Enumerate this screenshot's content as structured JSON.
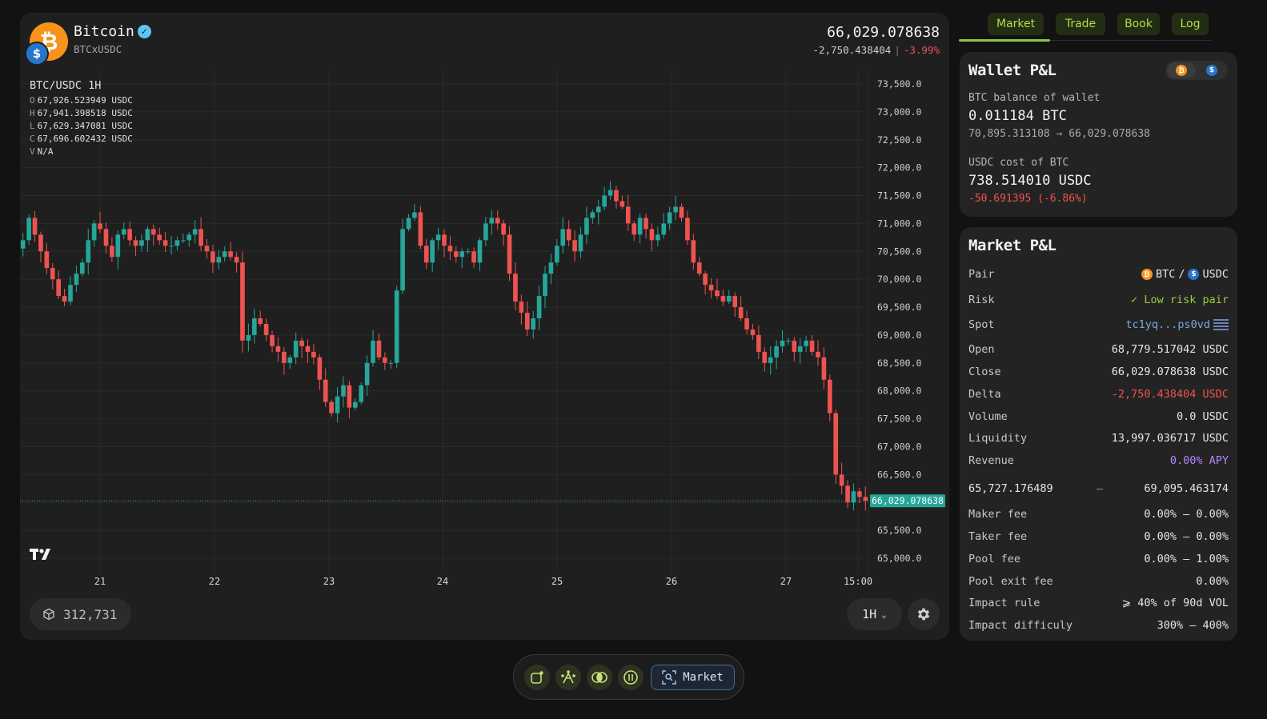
{
  "header": {
    "coin_name": "Bitcoin",
    "coin_symbol_glyph": "₿",
    "usdc_glyph": "$",
    "pair": "BTCxUSDC",
    "price": "66,029.078638",
    "change_abs": "-2,750.438404",
    "change_sep": "|",
    "change_pct": "-3.99%"
  },
  "ohlc": {
    "title": "BTC/USDC 1H",
    "o_label": "O",
    "o": "67,926.523949 USDC",
    "h_label": "H",
    "h": "67,941.398518 USDC",
    "l_label": "L",
    "l": "67,629.347081 USDC",
    "c_label": "C",
    "c": "67,696.602432 USDC",
    "v_label": "V",
    "v": "N/A"
  },
  "chart_data": {
    "type": "candlestick",
    "y_ticks": [
      "73,500.0",
      "73,000.0",
      "72,500.0",
      "72,000.0",
      "71,500.0",
      "71,000.0",
      "70,500.0",
      "70,000.0",
      "69,500.0",
      "69,000.0",
      "68,500.0",
      "68,000.0",
      "67,500.0",
      "67,000.0",
      "66,500.0",
      "66,000.0",
      "65,500.0",
      "65,000.0"
    ],
    "x_ticks": [
      "21",
      "22",
      "23",
      "24",
      "25",
      "26",
      "27",
      "15:00"
    ],
    "ylim": [
      65000,
      73500
    ],
    "current_price_label": "66,029.078638",
    "current_price": 66029.08,
    "up_color": "#26a69a",
    "down_color": "#ef5350",
    "closes": [
      70700,
      71100,
      70800,
      70500,
      70200,
      70000,
      69700,
      69600,
      69900,
      70100,
      70300,
      70700,
      71000,
      70900,
      70600,
      70400,
      70800,
      70900,
      70700,
      70600,
      70700,
      70900,
      70800,
      70700,
      70600,
      70600,
      70700,
      70700,
      70800,
      70900,
      70600,
      70500,
      70300,
      70400,
      70500,
      70400,
      70300,
      68900,
      69000,
      69300,
      69200,
      69000,
      68800,
      68700,
      68500,
      68600,
      68900,
      68800,
      68700,
      68600,
      68200,
      67800,
      67600,
      67900,
      68100,
      67700,
      67800,
      68100,
      68500,
      68900,
      68600,
      68500,
      68500,
      69800,
      70900,
      71100,
      71200,
      70600,
      70300,
      70700,
      70800,
      70600,
      70500,
      70400,
      70500,
      70500,
      70300,
      70700,
      71000,
      71100,
      71000,
      70800,
      70100,
      69600,
      69400,
      69100,
      69300,
      69700,
      70100,
      70300,
      70600,
      70900,
      70700,
      70500,
      70800,
      71100,
      71200,
      71300,
      71500,
      71600,
      71400,
      71300,
      71000,
      70800,
      71100,
      70900,
      70700,
      70800,
      71000,
      71200,
      71300,
      71100,
      70700,
      70300,
      70100,
      69900,
      69800,
      69700,
      69600,
      69700,
      69500,
      69300,
      69100,
      69000,
      68700,
      68500,
      68600,
      68800,
      68900,
      68900,
      68700,
      68800,
      68900,
      68700,
      68600,
      68200,
      67600,
      66500,
      66300,
      66000,
      66200,
      66100,
      66029
    ]
  },
  "chart_footer": {
    "blocks": "312,731",
    "timeframe": "1H",
    "chevron": "⌄"
  },
  "tabs": [
    "Market",
    "Trade",
    "Book",
    "Log"
  ],
  "wallet": {
    "title": "Wallet P&L",
    "btc_balance_label": "BTC balance of wallet",
    "btc_balance": "0.011184 BTC",
    "price_path": "70,895.313108 → 66,029.078638",
    "usdc_cost_label": "USDC cost of BTC",
    "usdc_cost": "738.514010 USDC",
    "usdc_change": "-50.691395 (-6.86%)"
  },
  "market": {
    "title": "Market P&L",
    "pair_label": "Pair",
    "pair_base": "BTC",
    "pair_sep": "/",
    "pair_quote": "USDC",
    "risk_label": "Risk",
    "risk_value": "✓ Low risk pair",
    "spot_label": "Spot",
    "spot_value": "tc1yq...ps0vd",
    "open_label": "Open",
    "open_value": "68,779.517042 USDC",
    "close_label": "Close",
    "close_value": "66,029.078638 USDC",
    "delta_label": "Delta",
    "delta_value": "-2,750.438404 USDC",
    "volume_label": "Volume",
    "volume_value": "0.0 USDC",
    "liquidity_label": "Liquidity",
    "liquidity_value": "13,997.036717 USDC",
    "revenue_label": "Revenue",
    "revenue_value": "0.00% APY",
    "range_low": "65,727.176489",
    "range_sep": "—",
    "range_high": "69,095.463174",
    "maker_label": "Maker fee",
    "maker_value": "0.00% — 0.00%",
    "taker_label": "Taker fee",
    "taker_value": "0.00% — 0.00%",
    "pool_label": "Pool fee",
    "pool_value": "0.00% — 1.00%",
    "pool_exit_label": "Pool exit fee",
    "pool_exit_value": "0.00%",
    "impact_rule_label": "Impact rule",
    "impact_rule_value": "⩾ 40% of 90d VOL",
    "impact_diff_label": "Impact difficuly",
    "impact_diff_value": "300% — 400%"
  },
  "toolbar": {
    "market_label": "Market"
  }
}
